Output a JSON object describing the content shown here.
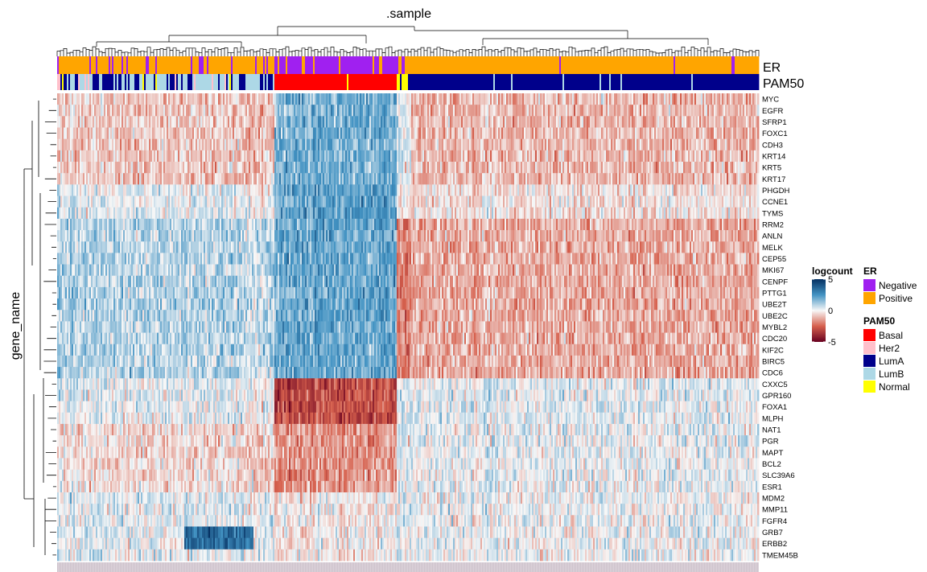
{
  "chart_data": {
    "type": "heatmap",
    "title": ".sample",
    "ylabel": "gene_name",
    "value_legend": {
      "title": "logcount",
      "ticks": [
        5,
        0,
        -5
      ],
      "range": [
        -5,
        5
      ],
      "colors": {
        "low": "#67001f",
        "mid": "#f7f7f7",
        "high": "#053061"
      }
    },
    "annotation_tracks": [
      {
        "name": "ER",
        "levels": [
          "Negative",
          "Positive"
        ],
        "colors": {
          "Negative": "#a020f0",
          "Positive": "#ffa500"
        }
      },
      {
        "name": "PAM50",
        "levels": [
          "Basal",
          "Her2",
          "LumA",
          "LumB",
          "Normal"
        ],
        "colors": {
          "Basal": "#ff0000",
          "Her2": "#ffc0cb",
          "LumA": "#00008b",
          "LumB": "#add8e6",
          "Normal": "#ffff00"
        }
      }
    ],
    "sample_groups": [
      {
        "pam50": "LumB",
        "er": "Positive",
        "fraction": 0.31,
        "er_negative_share": 0.12
      },
      {
        "pam50": "Basal",
        "er": "Negative",
        "fraction": 0.175,
        "er_negative_share": 0.9
      },
      {
        "pam50": "Normal",
        "er": "Positive",
        "fraction": 0.02,
        "er_negative_share": 0.3
      },
      {
        "pam50": "LumA",
        "er": "Positive",
        "fraction": 0.495,
        "er_negative_share": 0.02
      }
    ],
    "genes": [
      "MYC",
      "EGFR",
      "SFRP1",
      "FOXC1",
      "CDH3",
      "KRT14",
      "KRT5",
      "KRT17",
      "PHGDH",
      "CCNE1",
      "TYMS",
      "RRM2",
      "ANLN",
      "MELK",
      "CEP55",
      "MKI67",
      "CENPF",
      "PTTG1",
      "UBE2T",
      "UBE2C",
      "MYBL2",
      "CDC20",
      "KIF2C",
      "BIRC5",
      "CDC6",
      "CXXC5",
      "GPR160",
      "FOXA1",
      "MLPH",
      "NAT1",
      "PGR",
      "MAPT",
      "BCL2",
      "SLC39A6",
      "ESR1",
      "MDM2",
      "MMP11",
      "FGFR4",
      "GRB7",
      "ERBB2",
      "TMEM45B"
    ],
    "gene_cluster_profiles": [
      {
        "genes": [
          "MYC",
          "EGFR",
          "SFRP1",
          "FOXC1",
          "CDH3",
          "KRT14",
          "KRT5",
          "KRT17"
        ],
        "group_means": [
          -0.8,
          1.8,
          0.2,
          -1.0
        ]
      },
      {
        "genes": [
          "PHGDH",
          "CCNE1",
          "TYMS"
        ],
        "group_means": [
          0.2,
          2.2,
          -0.3,
          -0.3
        ]
      },
      {
        "genes": [
          "RRM2",
          "ANLN",
          "MELK",
          "CEP55",
          "MKI67",
          "CENPF",
          "PTTG1",
          "UBE2T",
          "UBE2C",
          "MYBL2",
          "CDC20",
          "KIF2C",
          "BIRC5",
          "CDC6"
        ],
        "group_means": [
          0.9,
          2.0,
          -2.2,
          -1.2
        ]
      },
      {
        "genes": [
          "CXXC5",
          "GPR160",
          "FOXA1",
          "MLPH"
        ],
        "group_means": [
          0.2,
          -3.0,
          0.3,
          0.3
        ]
      },
      {
        "genes": [
          "NAT1",
          "PGR",
          "MAPT",
          "BCL2",
          "SLC39A6",
          "ESR1"
        ],
        "group_means": [
          -0.5,
          -1.6,
          0.2,
          0.2
        ]
      },
      {
        "genes": [
          "MDM2",
          "MMP11",
          "FGFR4",
          "GRB7",
          "ERBB2",
          "TMEM45B"
        ],
        "group_means": [
          0.3,
          -0.2,
          0.2,
          0.1
        ]
      }
    ]
  }
}
